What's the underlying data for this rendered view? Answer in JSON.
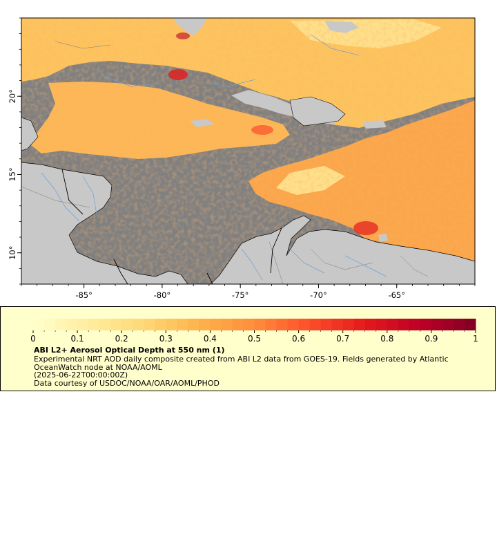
{
  "map": {
    "lon_range": [
      -89,
      -60
    ],
    "lat_range": [
      8,
      25
    ],
    "lon_ticks": [
      -85,
      -80,
      -75,
      -70,
      -65
    ],
    "lon_tick_labels": [
      "-85°",
      "-80°",
      "-75°",
      "-70°",
      "-65°"
    ],
    "lat_ticks": [
      10,
      15,
      20
    ],
    "lat_tick_labels": [
      "10°",
      "15°",
      "20°"
    ],
    "colors": {
      "no_data": "#808080",
      "land": "#c8c8c8",
      "border": "#000000",
      "river": "#6aa0d8",
      "admin_line": "#7a7a7a"
    }
  },
  "legend": {
    "title": "ABI L2+ Aerosol Optical Depth at 550 nm (1)",
    "description": "Experimental NRT AOD daily composite created from ABI L2 data from GOES-19. Fields generated by Atlantic OceanWatch node at NOAA/AOML",
    "time": "(2025-06-22T00:00:00Z)",
    "credit": "Data courtesy of USDOC/NOAA/OAR/AOML/PHOD",
    "colorbar_min": 0,
    "colorbar_max": 1,
    "colorbar_ticks": [
      0,
      0.1,
      0.2,
      0.3,
      0.4,
      0.5,
      0.6,
      0.7,
      0.8,
      0.9,
      1
    ],
    "colorbar_tick_labels": [
      "0",
      "0.1",
      "0.2",
      "0.3",
      "0.4",
      "0.5",
      "0.6",
      "0.7",
      "0.8",
      "0.9",
      "1"
    ],
    "colormap": [
      "#ffffcc",
      "#ffeda0",
      "#fed976",
      "#feb24c",
      "#fd8d3c",
      "#fc4e2a",
      "#e31a1c",
      "#bd0026",
      "#800026"
    ],
    "background": "#ffffcc"
  }
}
